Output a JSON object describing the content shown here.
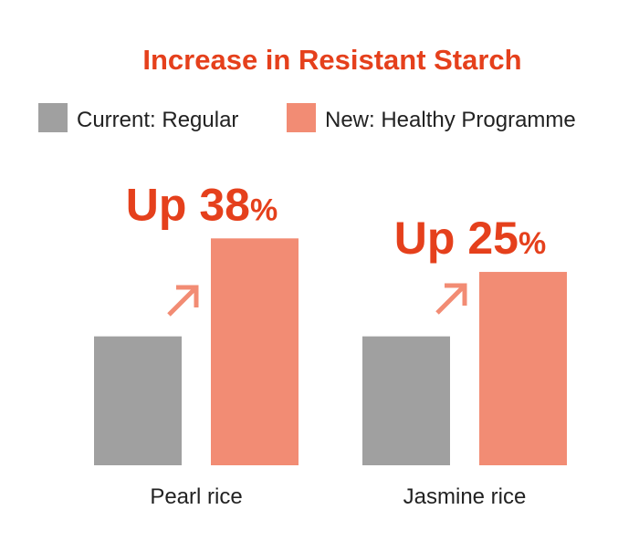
{
  "chart_data": {
    "type": "bar",
    "title": "Increase in Resistant Starch",
    "categories": [
      "Pearl rice",
      "Jasmine rice"
    ],
    "series": [
      {
        "name": "Current: Regular",
        "values": [
          100,
          100
        ],
        "color": "#a0a0a0"
      },
      {
        "name": "New: Healthy Programme",
        "values": [
          138,
          125
        ],
        "color": "#f28c74"
      }
    ],
    "annotations": [
      {
        "category": "Pearl rice",
        "prefix": "Up ",
        "number": "38",
        "suffix": "%"
      },
      {
        "category": "Jasmine rice",
        "prefix": "Up ",
        "number": "25",
        "suffix": "%"
      }
    ],
    "arrow_icon": "arrow-up-right-icon",
    "accent_color": "#e5401c",
    "legend_position": "top",
    "grid": false,
    "ylim": [
      50,
      142
    ]
  }
}
